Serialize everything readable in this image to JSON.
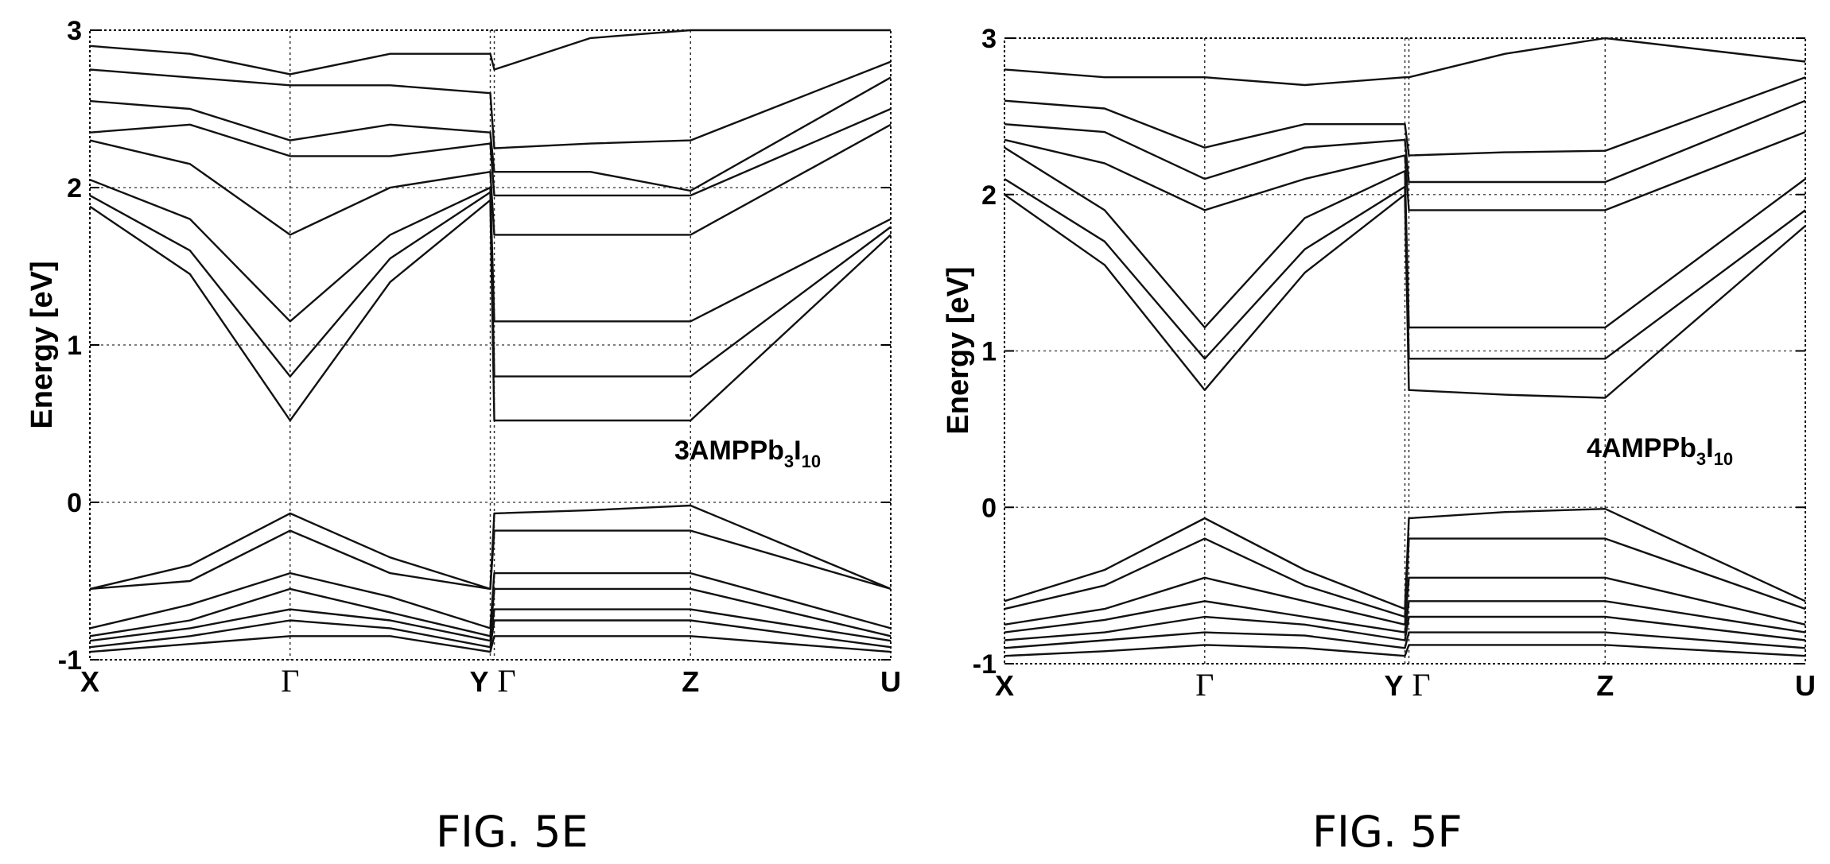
{
  "chart_data": [
    {
      "type": "line",
      "figure_label": "FIG. 5E",
      "compound": {
        "main": "3AMPPb",
        "sub1": "3",
        "mid": "I",
        "sub2": "10"
      },
      "ylabel": "Energy [eV]",
      "ylim": [
        -1,
        3
      ],
      "yticks": [
        "-1",
        "0",
        "1",
        "2",
        "3"
      ],
      "grid": true,
      "k_points": [
        "X",
        "Γ",
        "Y",
        "Γ",
        "Z",
        "U"
      ],
      "k_positions": [
        0,
        1,
        2,
        2.02,
        3,
        4
      ],
      "series": [
        {
          "values": [
            1.88,
            1.45,
            0.52,
            1.4,
            1.92,
            0.52,
            0.52,
            0.52,
            1.7
          ]
        },
        {
          "values": [
            1.95,
            1.6,
            0.8,
            1.55,
            1.97,
            0.8,
            0.8,
            0.8,
            1.75
          ]
        },
        {
          "values": [
            2.05,
            1.8,
            1.15,
            1.7,
            2.0,
            1.15,
            1.15,
            1.15,
            1.8
          ]
        },
        {
          "values": [
            2.3,
            2.15,
            1.7,
            2.0,
            2.1,
            1.7,
            1.7,
            1.7,
            2.4
          ]
        },
        {
          "values": [
            2.35,
            2.4,
            2.2,
            2.2,
            2.28,
            1.95,
            1.95,
            1.95,
            2.5
          ]
        },
        {
          "values": [
            2.55,
            2.5,
            2.3,
            2.4,
            2.35,
            2.1,
            2.1,
            1.98,
            2.7
          ]
        },
        {
          "values": [
            2.75,
            2.7,
            2.65,
            2.65,
            2.6,
            2.25,
            2.28,
            2.3,
            2.8
          ]
        },
        {
          "values": [
            2.9,
            2.85,
            2.72,
            2.85,
            2.85,
            2.75,
            2.95,
            3.0,
            3.0
          ]
        },
        {
          "values": [
            -0.55,
            -0.4,
            -0.07,
            -0.35,
            -0.55,
            -0.07,
            -0.05,
            -0.02,
            -0.55
          ]
        },
        {
          "values": [
            -0.55,
            -0.5,
            -0.18,
            -0.45,
            -0.55,
            -0.18,
            -0.18,
            -0.18,
            -0.55
          ]
        },
        {
          "values": [
            -0.8,
            -0.65,
            -0.45,
            -0.6,
            -0.8,
            -0.45,
            -0.45,
            -0.45,
            -0.8
          ]
        },
        {
          "values": [
            -0.85,
            -0.75,
            -0.55,
            -0.7,
            -0.85,
            -0.55,
            -0.55,
            -0.55,
            -0.85
          ]
        },
        {
          "values": [
            -0.88,
            -0.8,
            -0.68,
            -0.75,
            -0.88,
            -0.68,
            -0.68,
            -0.68,
            -0.88
          ]
        },
        {
          "values": [
            -0.92,
            -0.85,
            -0.75,
            -0.8,
            -0.92,
            -0.75,
            -0.75,
            -0.75,
            -0.92
          ]
        },
        {
          "values": [
            -0.95,
            -0.9,
            -0.85,
            -0.85,
            -0.95,
            -0.85,
            -0.85,
            -0.85,
            -0.95
          ]
        }
      ],
      "x_samples": [
        0,
        0.5,
        1,
        1.5,
        2,
        2.02,
        2.5,
        3,
        4
      ]
    },
    {
      "type": "line",
      "figure_label": "FIG. 5F",
      "compound": {
        "main": "4AMPPb",
        "sub1": "3",
        "mid": "I",
        "sub2": "10"
      },
      "ylabel": "Energy [eV]",
      "ylim": [
        -1,
        3
      ],
      "yticks": [
        "-1",
        "0",
        "1",
        "2",
        "3"
      ],
      "grid": true,
      "k_points": [
        "X",
        "Γ",
        "Y",
        "Γ",
        "Z",
        "U"
      ],
      "k_positions": [
        0,
        1,
        2,
        2.02,
        3,
        4
      ],
      "series": [
        {
          "values": [
            2.0,
            1.55,
            0.75,
            1.5,
            2.0,
            0.75,
            0.72,
            0.7,
            1.8
          ]
        },
        {
          "values": [
            2.1,
            1.7,
            0.95,
            1.65,
            2.05,
            0.95,
            0.95,
            0.95,
            1.9
          ]
        },
        {
          "values": [
            2.3,
            1.9,
            1.15,
            1.85,
            2.15,
            1.15,
            1.15,
            1.15,
            2.1
          ]
        },
        {
          "values": [
            2.35,
            2.2,
            1.9,
            2.1,
            2.25,
            1.9,
            1.9,
            1.9,
            2.4
          ]
        },
        {
          "values": [
            2.45,
            2.4,
            2.1,
            2.3,
            2.35,
            2.08,
            2.08,
            2.08,
            2.6
          ]
        },
        {
          "values": [
            2.6,
            2.55,
            2.3,
            2.45,
            2.45,
            2.25,
            2.27,
            2.28,
            2.75
          ]
        },
        {
          "values": [
            2.8,
            2.75,
            2.75,
            2.7,
            2.75,
            2.75,
            2.9,
            3.0,
            2.85
          ]
        },
        {
          "values": [
            -0.6,
            -0.4,
            -0.07,
            -0.4,
            -0.65,
            -0.07,
            -0.03,
            -0.01,
            -0.6
          ]
        },
        {
          "values": [
            -0.65,
            -0.5,
            -0.2,
            -0.5,
            -0.7,
            -0.2,
            -0.2,
            -0.2,
            -0.65
          ]
        },
        {
          "values": [
            -0.75,
            -0.65,
            -0.45,
            -0.6,
            -0.75,
            -0.45,
            -0.45,
            -0.45,
            -0.75
          ]
        },
        {
          "values": [
            -0.8,
            -0.72,
            -0.6,
            -0.7,
            -0.8,
            -0.6,
            -0.6,
            -0.6,
            -0.8
          ]
        },
        {
          "values": [
            -0.85,
            -0.8,
            -0.7,
            -0.75,
            -0.85,
            -0.7,
            -0.7,
            -0.7,
            -0.85
          ]
        },
        {
          "values": [
            -0.9,
            -0.85,
            -0.8,
            -0.82,
            -0.9,
            -0.8,
            -0.8,
            -0.8,
            -0.9
          ]
        },
        {
          "values": [
            -0.95,
            -0.92,
            -0.88,
            -0.9,
            -0.95,
            -0.88,
            -0.88,
            -0.88,
            -0.95
          ]
        }
      ],
      "x_samples": [
        0,
        0.5,
        1,
        1.5,
        2,
        2.02,
        2.5,
        3,
        4
      ]
    }
  ]
}
